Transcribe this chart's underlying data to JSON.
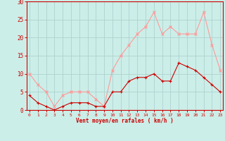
{
  "x": [
    0,
    1,
    2,
    3,
    4,
    5,
    6,
    7,
    8,
    9,
    10,
    11,
    12,
    13,
    14,
    15,
    16,
    17,
    18,
    19,
    20,
    21,
    22,
    23
  ],
  "wind_avg": [
    4,
    2,
    1,
    0,
    1,
    2,
    2,
    2,
    1,
    1,
    5,
    5,
    8,
    9,
    9,
    10,
    8,
    8,
    13,
    12,
    11,
    9,
    7,
    5
  ],
  "wind_gust": [
    10,
    7,
    5,
    1,
    4,
    5,
    5,
    5,
    3,
    1,
    11,
    15,
    18,
    21,
    23,
    27,
    21,
    23,
    21,
    21,
    21,
    27,
    18,
    11
  ],
  "color_avg": "#cc0000",
  "color_gust": "#ff9999",
  "bg_color": "#cceee8",
  "grid_color": "#aacccc",
  "xlabel": "Vent moyen/en rafales ( km/h )",
  "xlabel_color": "#cc0000",
  "tick_color": "#cc0000",
  "spine_color": "#cc0000",
  "ylim": [
    0,
    30
  ],
  "yticks": [
    0,
    5,
    10,
    15,
    20,
    25,
    30
  ],
  "xticks": [
    0,
    1,
    2,
    3,
    4,
    5,
    6,
    7,
    8,
    9,
    10,
    11,
    12,
    13,
    14,
    15,
    16,
    17,
    18,
    19,
    20,
    21,
    22,
    23
  ],
  "marker_avg": "+",
  "marker_gust": "x",
  "linewidth": 0.8,
  "markersize": 3
}
